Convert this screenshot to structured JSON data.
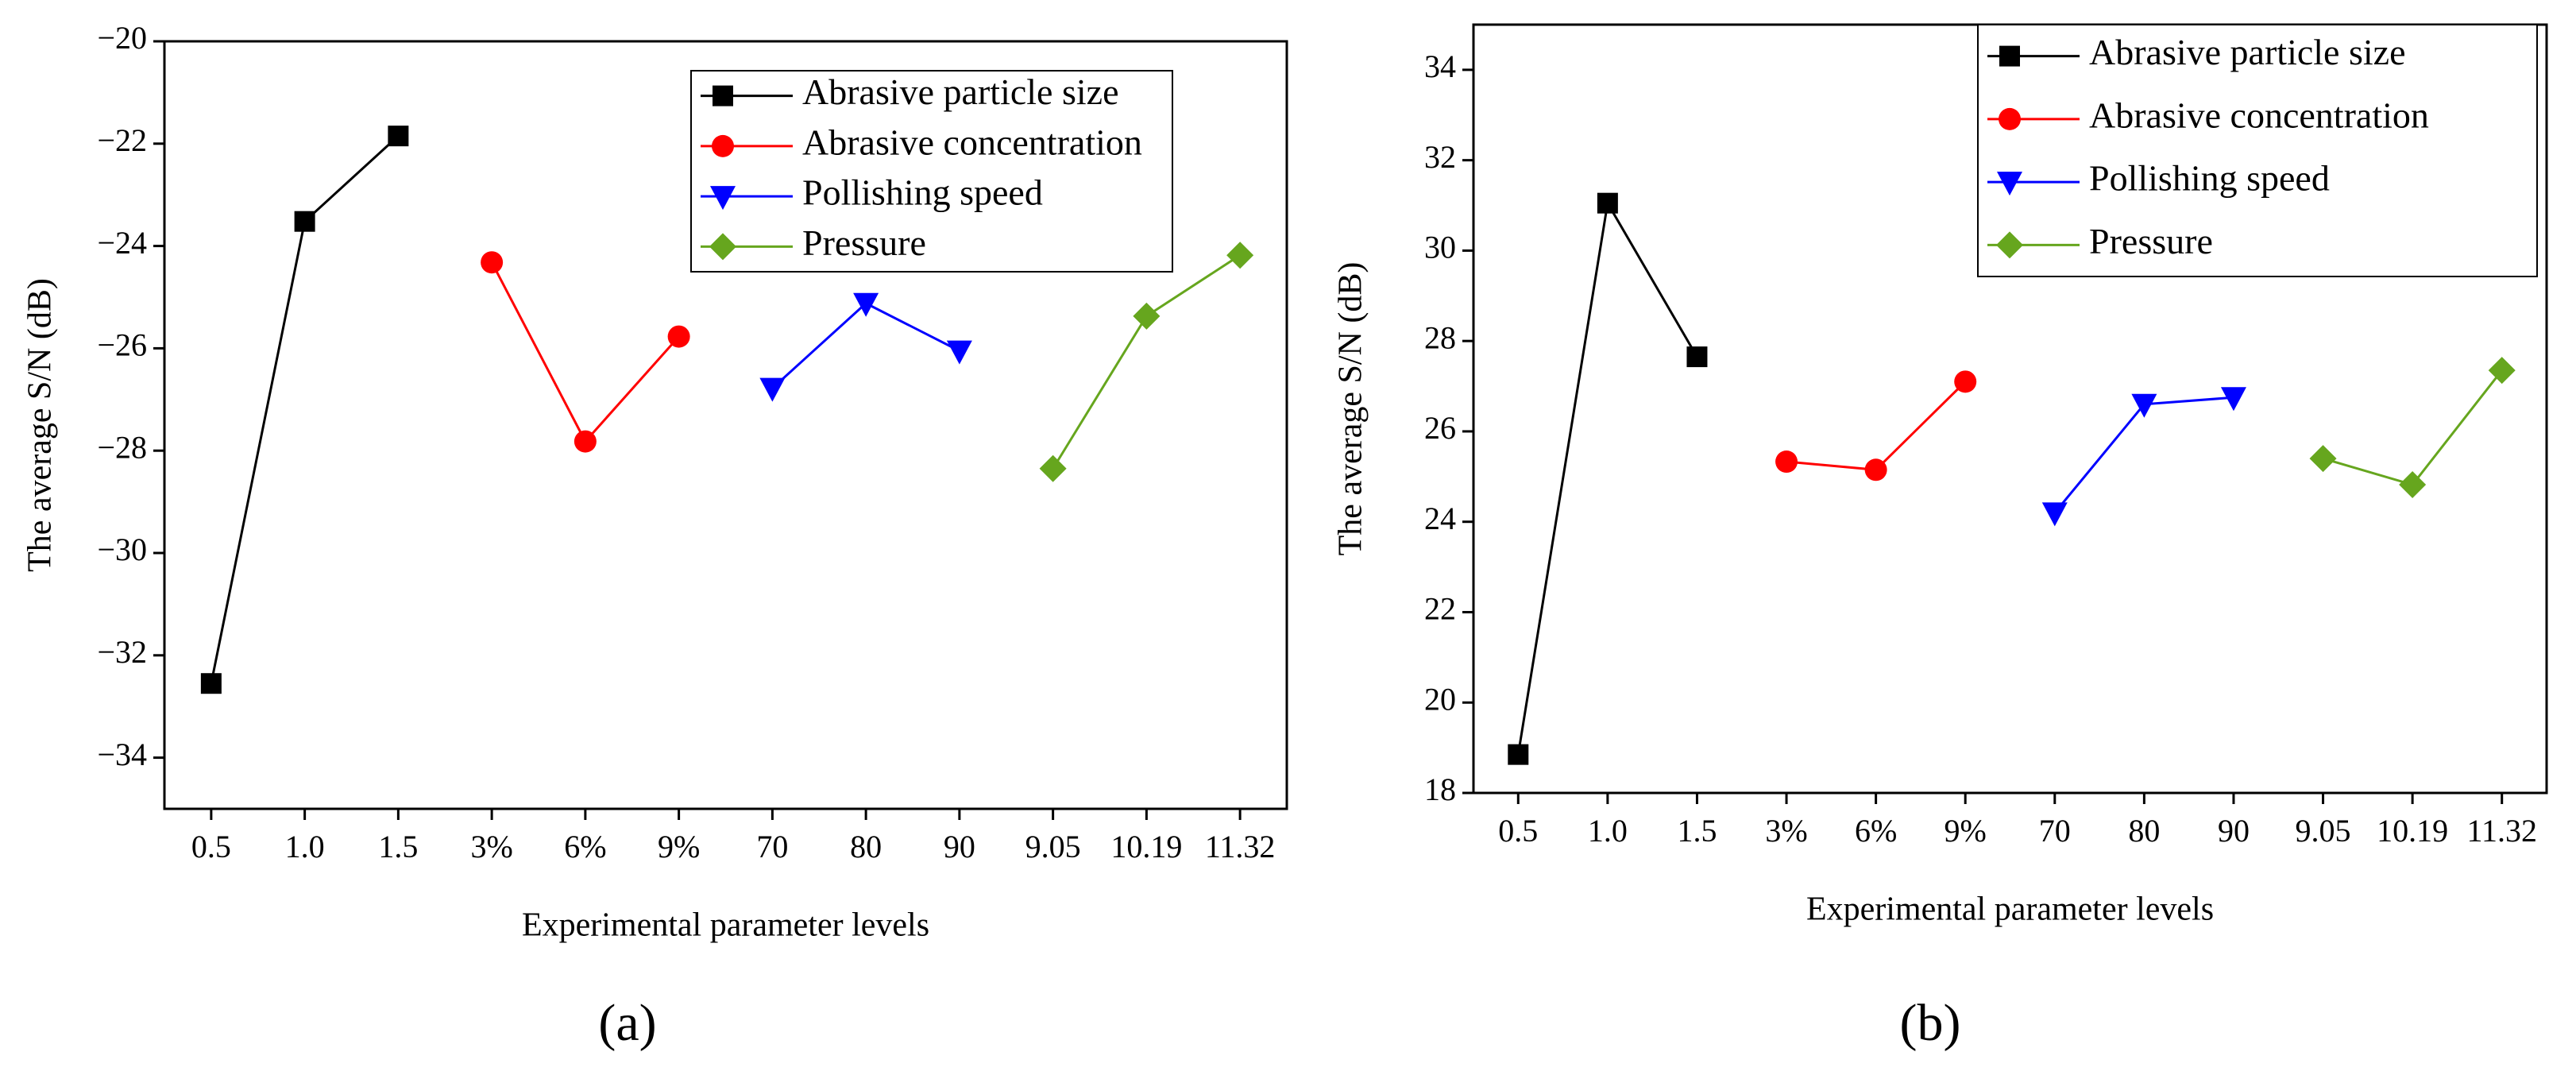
{
  "chart_data": [
    {
      "type": "line",
      "label": "(a)",
      "xlabel": "Experimental parameter levels",
      "ylabel": "The average S/N (dB)",
      "categories": [
        "0.5",
        "1.0",
        "1.5",
        "3%",
        "6%",
        "9%",
        "70",
        "80",
        "90",
        "9.05",
        "10.19",
        "11.32"
      ],
      "ylim": [
        -35,
        -20
      ],
      "yticks": [
        {
          "value": -34,
          "label": "−34"
        },
        {
          "value": -32,
          "label": "−32"
        },
        {
          "value": -30,
          "label": "−30"
        },
        {
          "value": -28,
          "label": "−28"
        },
        {
          "value": -26,
          "label": "−26"
        },
        {
          "value": -24,
          "label": "−24"
        },
        {
          "value": -22,
          "label": "−22"
        },
        {
          "value": -20,
          "label": "−20"
        }
      ],
      "legend": "upper right",
      "series": [
        {
          "name": "Abrasive particle size",
          "color": "#000000",
          "marker": "square",
          "values": [
            -32.55,
            -23.52,
            -21.85,
            null,
            null,
            null,
            null,
            null,
            null,
            null,
            null,
            null
          ]
        },
        {
          "name": "Abrasive concentration",
          "color": "#ff0000",
          "marker": "circle",
          "values": [
            null,
            null,
            null,
            -24.32,
            -27.82,
            -25.77,
            null,
            null,
            null,
            null,
            null,
            null
          ]
        },
        {
          "name": "Pollishing speed",
          "color": "#0000ff",
          "marker": "triangle-down",
          "values": [
            null,
            null,
            null,
            null,
            null,
            null,
            -26.78,
            -25.12,
            -26.05,
            null,
            null,
            null
          ]
        },
        {
          "name": "Pressure",
          "color": "#66a61e",
          "marker": "diamond",
          "values": [
            null,
            null,
            null,
            null,
            null,
            null,
            null,
            null,
            null,
            -28.35,
            -25.37,
            -24.18
          ]
        }
      ]
    },
    {
      "type": "line",
      "label": "(b)",
      "xlabel": "Experimental parameter levels",
      "ylabel": "The average S/N (dB)",
      "categories": [
        "0.5",
        "1.0",
        "1.5",
        "3%",
        "6%",
        "9%",
        "70",
        "80",
        "90",
        "9.05",
        "10.19",
        "11.32"
      ],
      "ylim": [
        18,
        35
      ],
      "yticks": [
        18,
        20,
        22,
        24,
        26,
        28,
        30,
        32,
        34
      ],
      "legend": "upper right",
      "series": [
        {
          "name": "Abrasive particle size",
          "color": "#000000",
          "marker": "square",
          "values": [
            18.85,
            31.05,
            27.65,
            null,
            null,
            null,
            null,
            null,
            null,
            null,
            null,
            null
          ]
        },
        {
          "name": "Abrasive concentration",
          "color": "#ff0000",
          "marker": "circle",
          "values": [
            null,
            null,
            null,
            25.33,
            25.15,
            27.1,
            null,
            null,
            null,
            null,
            null,
            null
          ]
        },
        {
          "name": "Pollishing speed",
          "color": "#0000ff",
          "marker": "triangle-down",
          "values": [
            null,
            null,
            null,
            null,
            null,
            null,
            24.2,
            26.6,
            26.75,
            null,
            null,
            null
          ]
        },
        {
          "name": "Pressure",
          "color": "#66a61e",
          "marker": "diamond",
          "values": [
            null,
            null,
            null,
            null,
            null,
            null,
            null,
            null,
            null,
            25.4,
            24.82,
            27.35
          ]
        }
      ]
    }
  ]
}
